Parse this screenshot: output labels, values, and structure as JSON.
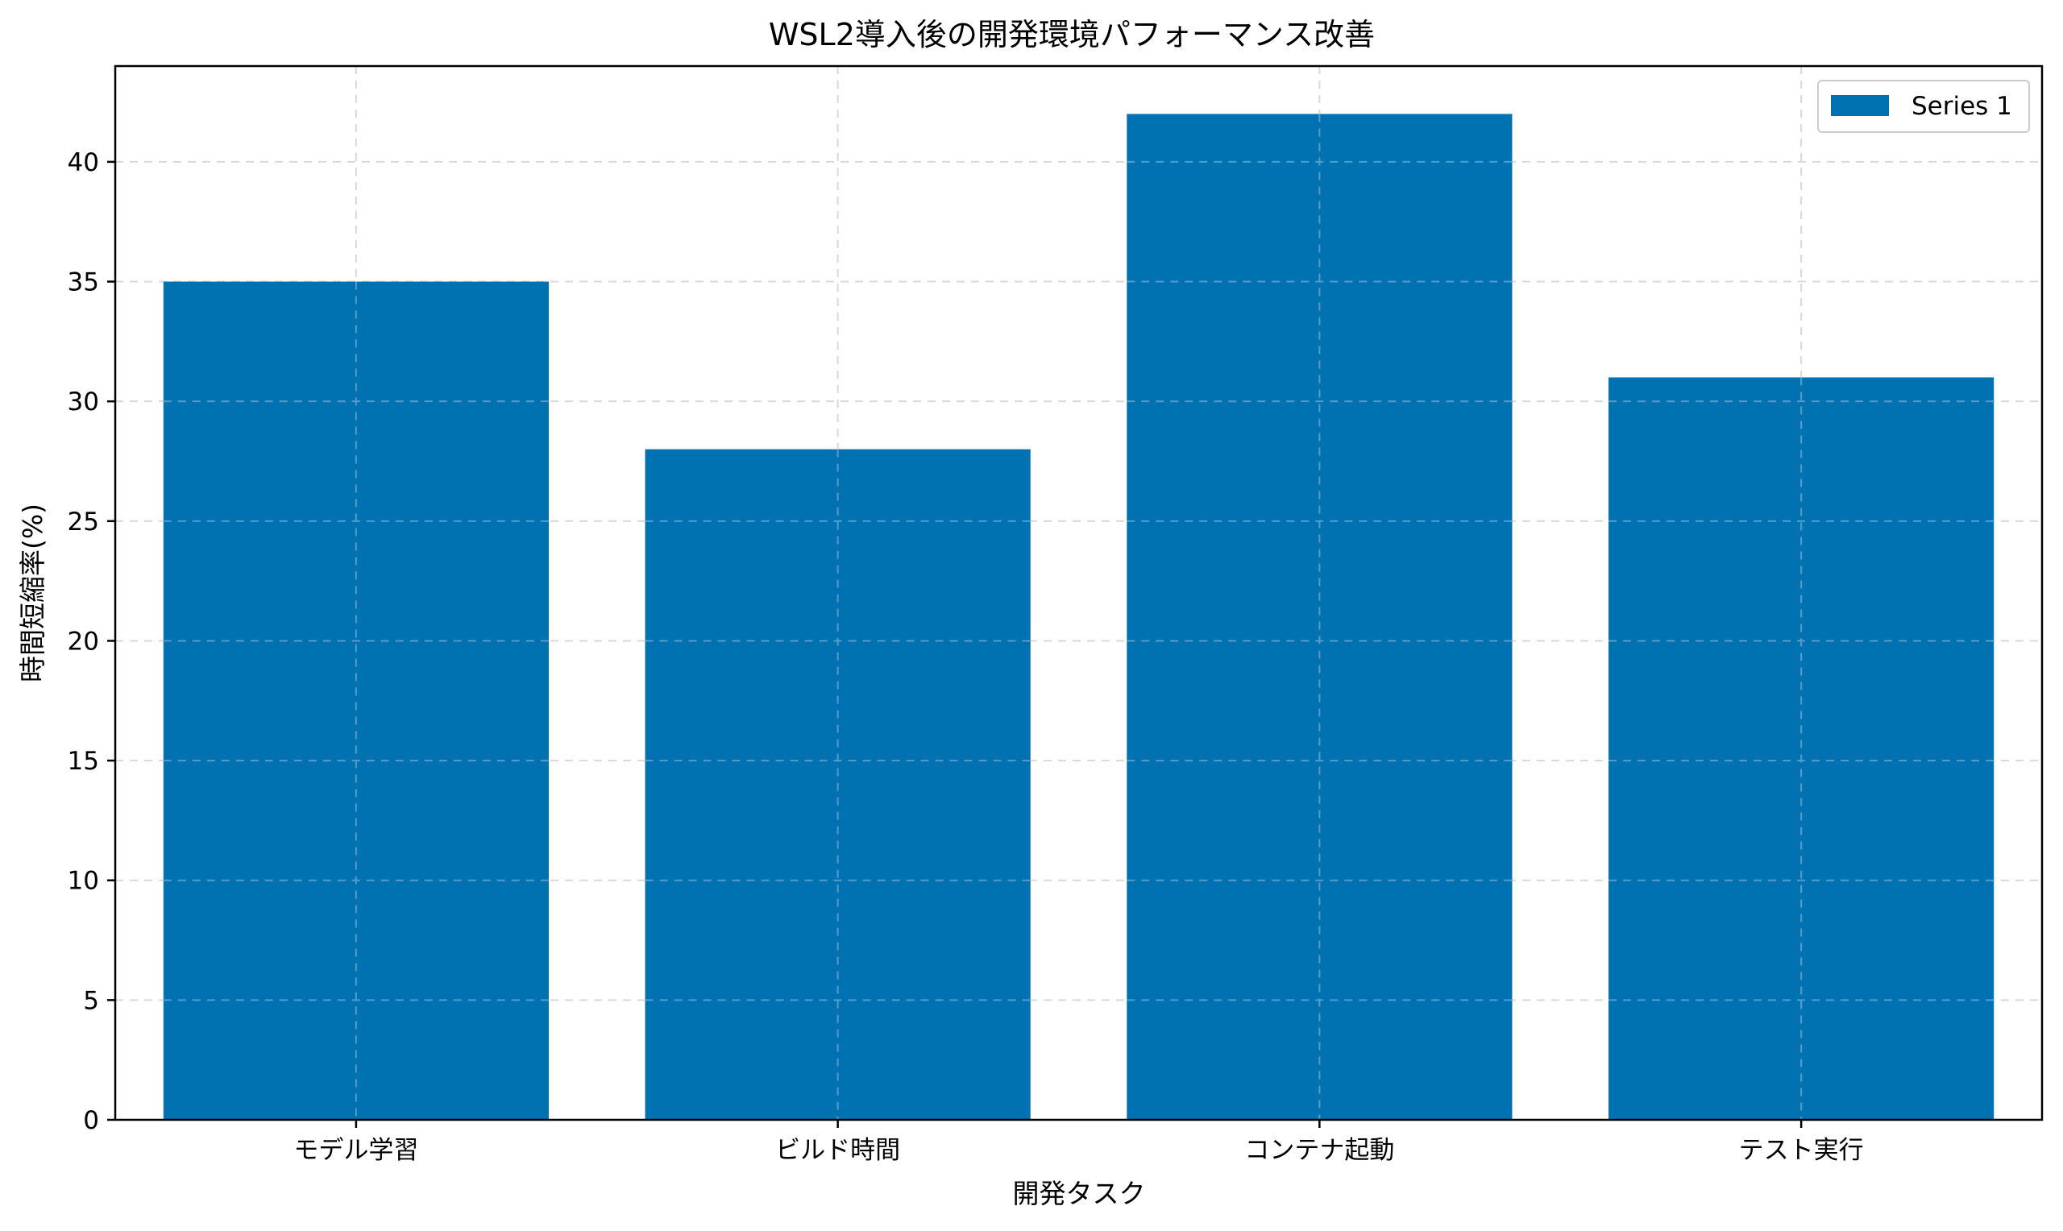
{
  "chart_data": {
    "type": "bar",
    "title": "WSL2導入後の開発環境パフォーマンス改善",
    "xlabel": "開発タスク",
    "ylabel": "時間短縮率(%)",
    "categories": [
      "モデル学習",
      "ビルド時間",
      "コンテナ起動",
      "テスト実行"
    ],
    "series": [
      {
        "name": "Series 1",
        "values": [
          35,
          28,
          42,
          31
        ],
        "color": "#0072b2"
      }
    ],
    "ylim": [
      0,
      44
    ],
    "yticks": [
      0,
      5,
      10,
      15,
      20,
      25,
      30,
      35,
      40
    ],
    "grid": true,
    "legend_position": "top-right"
  }
}
